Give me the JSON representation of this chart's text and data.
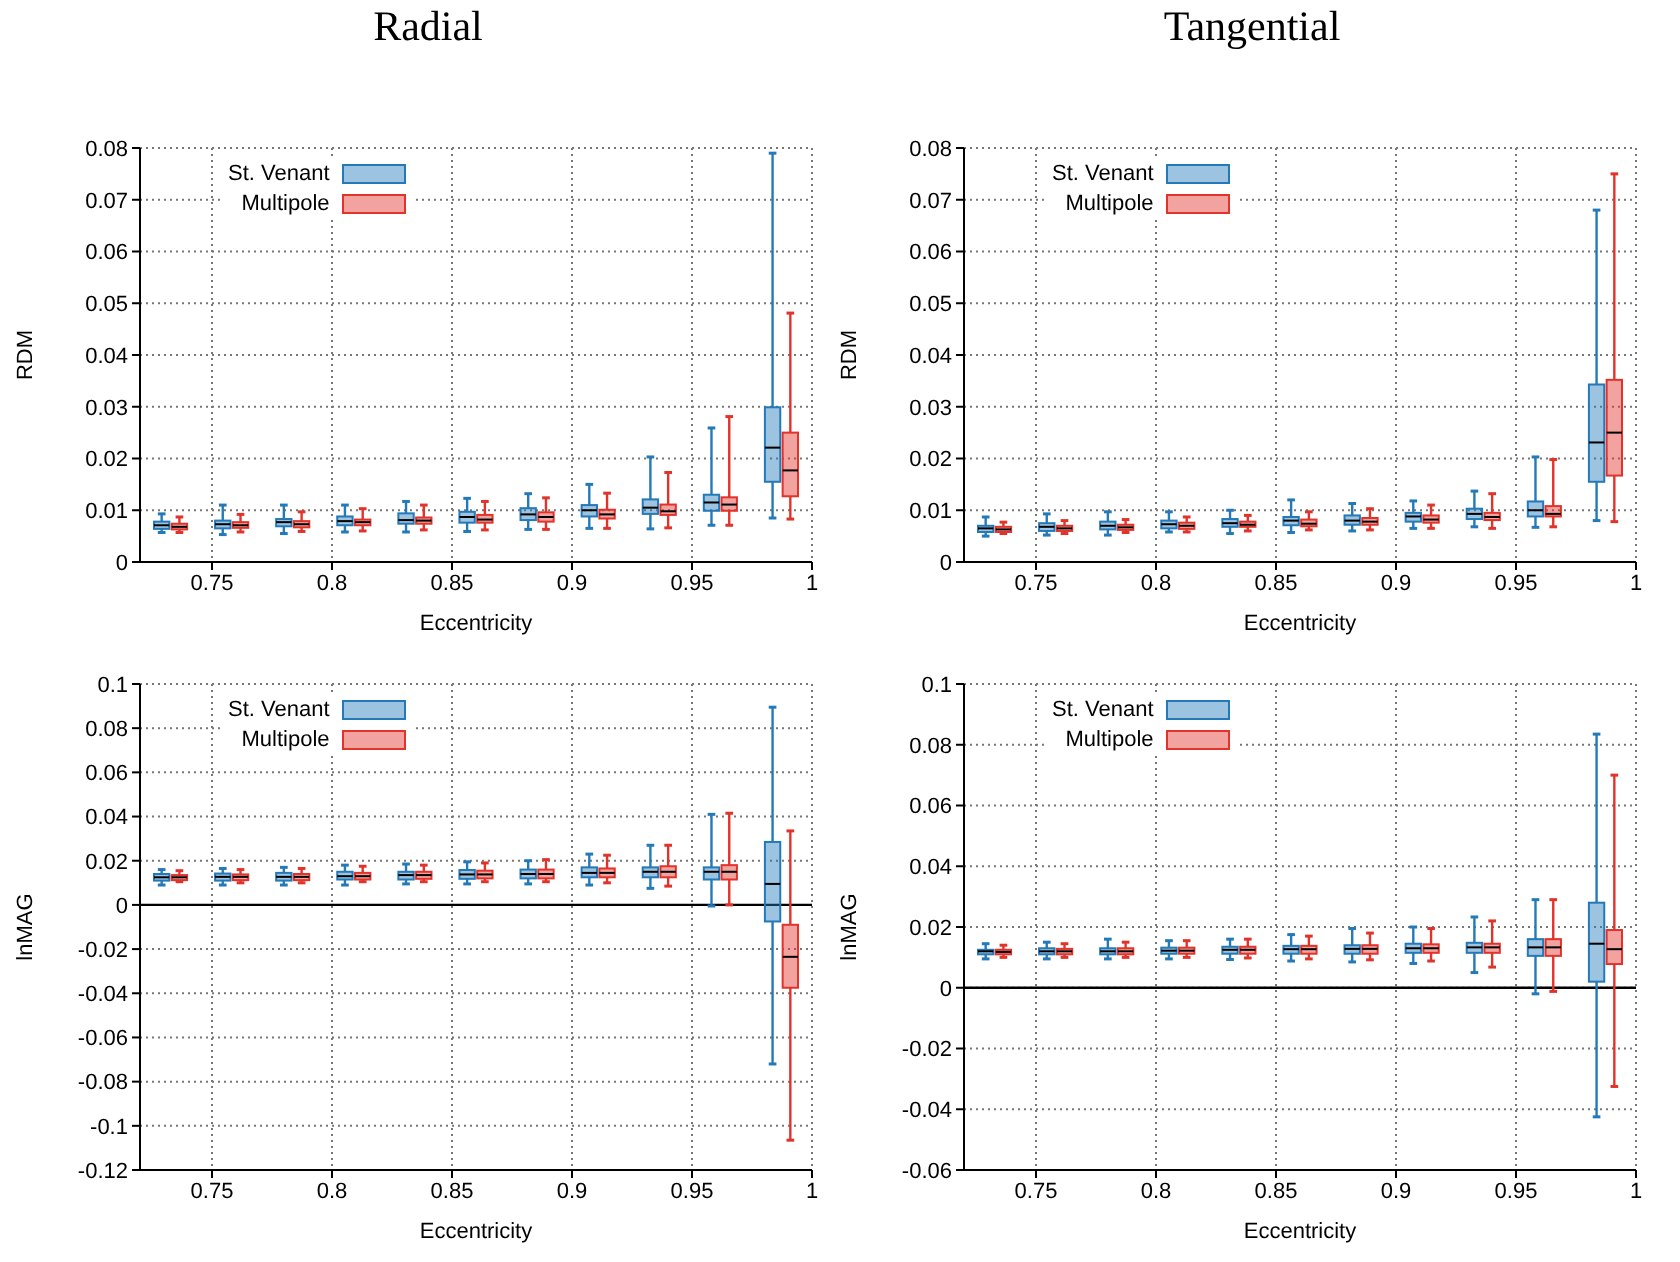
{
  "chart_data": [
    {
      "type": "box",
      "title": "Radial",
      "xlabel": "Eccentricity",
      "ylabel": "RDM",
      "categories": [
        null,
        null,
        null,
        null,
        null,
        null,
        null,
        null,
        null,
        null,
        null
      ],
      "x2lim": [
        0.72,
        1
      ],
      "x2ticks": [
        0.75,
        0.8,
        0.85,
        0.9,
        0.95,
        1
      ],
      "ylim": [
        0,
        0.08
      ],
      "yticks": [
        0,
        0.01,
        0.02,
        0.03,
        0.04,
        0.05,
        0.06,
        0.07,
        0.08
      ],
      "grid": true,
      "legend": "top left",
      "series": [
        {
          "name": "St. Venant",
          "color": "#2479b8",
          "boxes": [
            {
              "low": 0.0057,
              "q1": 0.0064,
              "median": 0.0071,
              "q3": 0.0078,
              "high": 0.0093
            },
            {
              "low": 0.0053,
              "q1": 0.0065,
              "median": 0.0073,
              "q3": 0.008,
              "high": 0.011
            },
            {
              "low": 0.0055,
              "q1": 0.0069,
              "median": 0.0077,
              "q3": 0.0083,
              "high": 0.011
            },
            {
              "low": 0.0058,
              "q1": 0.0071,
              "median": 0.0079,
              "q3": 0.0088,
              "high": 0.011
            },
            {
              "low": 0.0058,
              "q1": 0.0074,
              "median": 0.0081,
              "q3": 0.0094,
              "high": 0.0117
            },
            {
              "low": 0.0059,
              "q1": 0.0076,
              "median": 0.0087,
              "q3": 0.0097,
              "high": 0.0123
            },
            {
              "low": 0.0063,
              "q1": 0.0081,
              "median": 0.0092,
              "q3": 0.0104,
              "high": 0.0132
            },
            {
              "low": 0.0065,
              "q1": 0.0088,
              "median": 0.01,
              "q3": 0.011,
              "high": 0.015
            },
            {
              "low": 0.0064,
              "q1": 0.0093,
              "median": 0.0105,
              "q3": 0.0121,
              "high": 0.0203
            },
            {
              "low": 0.0071,
              "q1": 0.0099,
              "median": 0.0115,
              "q3": 0.013,
              "high": 0.0259
            },
            {
              "low": 0.0085,
              "q1": 0.0155,
              "median": 0.0221,
              "q3": 0.0299,
              "high": 0.079
            }
          ]
        },
        {
          "name": "Multipole",
          "color": "#e2332b",
          "boxes": [
            {
              "low": 0.0057,
              "q1": 0.0063,
              "median": 0.0068,
              "q3": 0.0074,
              "high": 0.0087
            },
            {
              "low": 0.0058,
              "q1": 0.0066,
              "median": 0.0071,
              "q3": 0.0077,
              "high": 0.0092
            },
            {
              "low": 0.0059,
              "q1": 0.0067,
              "median": 0.0073,
              "q3": 0.0079,
              "high": 0.0097
            },
            {
              "low": 0.006,
              "q1": 0.0071,
              "median": 0.0077,
              "q3": 0.0082,
              "high": 0.0103
            },
            {
              "low": 0.0062,
              "q1": 0.0074,
              "median": 0.008,
              "q3": 0.0086,
              "high": 0.011
            },
            {
              "low": 0.0062,
              "q1": 0.0076,
              "median": 0.0082,
              "q3": 0.0091,
              "high": 0.0117
            },
            {
              "low": 0.0063,
              "q1": 0.0078,
              "median": 0.0087,
              "q3": 0.0096,
              "high": 0.0124
            },
            {
              "low": 0.0065,
              "q1": 0.0084,
              "median": 0.0092,
              "q3": 0.0101,
              "high": 0.0133
            },
            {
              "low": 0.0066,
              "q1": 0.0091,
              "median": 0.0098,
              "q3": 0.0111,
              "high": 0.0173
            },
            {
              "low": 0.0071,
              "q1": 0.0099,
              "median": 0.0111,
              "q3": 0.0125,
              "high": 0.0281
            },
            {
              "low": 0.0083,
              "q1": 0.0127,
              "median": 0.0177,
              "q3": 0.025,
              "high": 0.0481
            }
          ]
        }
      ]
    },
    {
      "type": "box",
      "title": "Tangential",
      "xlabel": "Eccentricity",
      "ylabel": "RDM",
      "categories": [
        null,
        null,
        null,
        null,
        null,
        null,
        null,
        null,
        null,
        null,
        null
      ],
      "x2lim": [
        0.72,
        1
      ],
      "x2ticks": [
        0.75,
        0.8,
        0.85,
        0.9,
        0.95,
        1
      ],
      "ylim": [
        0,
        0.08
      ],
      "yticks": [
        0,
        0.01,
        0.02,
        0.03,
        0.04,
        0.05,
        0.06,
        0.07,
        0.08
      ],
      "grid": true,
      "legend": "top left",
      "series": [
        {
          "name": "St. Venant",
          "color": "#2479b8",
          "boxes": [
            {
              "low": 0.005,
              "q1": 0.0058,
              "median": 0.0065,
              "q3": 0.007,
              "high": 0.0087
            },
            {
              "low": 0.0052,
              "q1": 0.006,
              "median": 0.0068,
              "q3": 0.0075,
              "high": 0.0093
            },
            {
              "low": 0.0052,
              "q1": 0.0063,
              "median": 0.007,
              "q3": 0.0078,
              "high": 0.0097
            },
            {
              "low": 0.0058,
              "q1": 0.0065,
              "median": 0.0073,
              "q3": 0.008,
              "high": 0.0097
            },
            {
              "low": 0.0055,
              "q1": 0.0068,
              "median": 0.0075,
              "q3": 0.0083,
              "high": 0.01
            },
            {
              "low": 0.0057,
              "q1": 0.0071,
              "median": 0.008,
              "q3": 0.0087,
              "high": 0.012
            },
            {
              "low": 0.006,
              "q1": 0.0072,
              "median": 0.008,
              "q3": 0.009,
              "high": 0.0113
            },
            {
              "low": 0.0065,
              "q1": 0.0078,
              "median": 0.0088,
              "q3": 0.0095,
              "high": 0.0118
            },
            {
              "low": 0.0068,
              "q1": 0.0083,
              "median": 0.0093,
              "q3": 0.0103,
              "high": 0.0137
            },
            {
              "low": 0.0067,
              "q1": 0.0088,
              "median": 0.01,
              "q3": 0.0117,
              "high": 0.0203
            },
            {
              "low": 0.008,
              "q1": 0.0155,
              "median": 0.0231,
              "q3": 0.0343,
              "high": 0.068
            }
          ]
        },
        {
          "name": "Multipole",
          "color": "#e2332b",
          "boxes": [
            {
              "low": 0.0055,
              "q1": 0.0058,
              "median": 0.0063,
              "q3": 0.0068,
              "high": 0.0077
            },
            {
              "low": 0.0055,
              "q1": 0.006,
              "median": 0.0065,
              "q3": 0.007,
              "high": 0.008
            },
            {
              "low": 0.0057,
              "q1": 0.0062,
              "median": 0.0067,
              "q3": 0.0072,
              "high": 0.0082
            },
            {
              "low": 0.0058,
              "q1": 0.0064,
              "median": 0.007,
              "q3": 0.0076,
              "high": 0.0087
            },
            {
              "low": 0.006,
              "q1": 0.0068,
              "median": 0.0072,
              "q3": 0.0078,
              "high": 0.009
            },
            {
              "low": 0.0062,
              "q1": 0.0069,
              "median": 0.0074,
              "q3": 0.0082,
              "high": 0.0097
            },
            {
              "low": 0.0062,
              "q1": 0.0072,
              "median": 0.0078,
              "q3": 0.0085,
              "high": 0.0103
            },
            {
              "low": 0.0065,
              "q1": 0.0076,
              "median": 0.0082,
              "q3": 0.009,
              "high": 0.011
            },
            {
              "low": 0.0065,
              "q1": 0.0081,
              "median": 0.0087,
              "q3": 0.0095,
              "high": 0.0132
            },
            {
              "low": 0.0068,
              "q1": 0.0088,
              "median": 0.0093,
              "q3": 0.0108,
              "high": 0.0198
            },
            {
              "low": 0.0078,
              "q1": 0.0167,
              "median": 0.025,
              "q3": 0.0352,
              "high": 0.075
            }
          ]
        }
      ]
    },
    {
      "type": "box",
      "xlabel": "Eccentricity",
      "ylabel": "lnMAG",
      "categories": [
        null,
        null,
        null,
        null,
        null,
        null,
        null,
        null,
        null,
        null,
        null
      ],
      "x2lim": [
        0.72,
        1
      ],
      "x2ticks": [
        0.75,
        0.8,
        0.85,
        0.9,
        0.95,
        1
      ],
      "ylim": [
        -0.12,
        0.1
      ],
      "yticks": [
        -0.12,
        -0.1,
        -0.08,
        -0.06,
        -0.04,
        -0.02,
        0,
        0.02,
        0.04,
        0.06,
        0.08,
        0.1
      ],
      "grid": true,
      "legend": "top left",
      "ref_lines": [
        {
          "axis": "y",
          "value": 0,
          "color": "#000000"
        }
      ],
      "series": [
        {
          "name": "St. Venant",
          "color": "#2479b8",
          "boxes": [
            {
              "low": 0.009,
              "q1": 0.011,
              "median": 0.0125,
              "q3": 0.014,
              "high": 0.016
            },
            {
              "low": 0.009,
              "q1": 0.011,
              "median": 0.0127,
              "q3": 0.0142,
              "high": 0.0165
            },
            {
              "low": 0.009,
              "q1": 0.011,
              "median": 0.0127,
              "q3": 0.0145,
              "high": 0.017
            },
            {
              "low": 0.009,
              "q1": 0.0115,
              "median": 0.013,
              "q3": 0.015,
              "high": 0.018
            },
            {
              "low": 0.0095,
              "q1": 0.0115,
              "median": 0.0135,
              "q3": 0.015,
              "high": 0.0185
            },
            {
              "low": 0.0095,
              "q1": 0.0118,
              "median": 0.0138,
              "q3": 0.0158,
              "high": 0.0195
            },
            {
              "low": 0.0095,
              "q1": 0.012,
              "median": 0.014,
              "q3": 0.016,
              "high": 0.02
            },
            {
              "low": 0.009,
              "q1": 0.0125,
              "median": 0.0145,
              "q3": 0.017,
              "high": 0.023
            },
            {
              "low": 0.0075,
              "q1": 0.0125,
              "median": 0.015,
              "q3": 0.017,
              "high": 0.027
            },
            {
              "low": -0.0005,
              "q1": 0.0115,
              "median": 0.015,
              "q3": 0.017,
              "high": 0.041
            },
            {
              "low": -0.072,
              "q1": -0.0075,
              "median": 0.0095,
              "q3": 0.0285,
              "high": 0.0895
            }
          ]
        },
        {
          "name": "Multipole",
          "color": "#e2332b",
          "boxes": [
            {
              "low": 0.0105,
              "q1": 0.0112,
              "median": 0.0125,
              "q3": 0.0135,
              "high": 0.0155
            },
            {
              "low": 0.01,
              "q1": 0.0112,
              "median": 0.0127,
              "q3": 0.0138,
              "high": 0.016
            },
            {
              "low": 0.01,
              "q1": 0.0112,
              "median": 0.0127,
              "q3": 0.014,
              "high": 0.0165
            },
            {
              "low": 0.0105,
              "q1": 0.0115,
              "median": 0.013,
              "q3": 0.0145,
              "high": 0.0175
            },
            {
              "low": 0.0105,
              "q1": 0.0118,
              "median": 0.0135,
              "q3": 0.015,
              "high": 0.018
            },
            {
              "low": 0.0105,
              "q1": 0.012,
              "median": 0.0138,
              "q3": 0.0155,
              "high": 0.019
            },
            {
              "low": 0.0105,
              "q1": 0.012,
              "median": 0.014,
              "q3": 0.016,
              "high": 0.0205
            },
            {
              "low": 0.01,
              "q1": 0.0125,
              "median": 0.0145,
              "q3": 0.0165,
              "high": 0.0225
            },
            {
              "low": 0.0085,
              "q1": 0.0125,
              "median": 0.015,
              "q3": 0.0175,
              "high": 0.027
            },
            {
              "low": 0,
              "q1": 0.0115,
              "median": 0.015,
              "q3": 0.018,
              "high": 0.0415
            },
            {
              "low": -0.1065,
              "q1": -0.0375,
              "median": -0.0235,
              "q3": -0.009,
              "high": 0.0335
            }
          ]
        }
      ]
    },
    {
      "type": "box",
      "xlabel": "Eccentricity",
      "ylabel": "lnMAG",
      "categories": [
        null,
        null,
        null,
        null,
        null,
        null,
        null,
        null,
        null,
        null,
        null
      ],
      "x2lim": [
        0.72,
        1
      ],
      "x2ticks": [
        0.75,
        0.8,
        0.85,
        0.9,
        0.95,
        1
      ],
      "ylim": [
        -0.06,
        0.1
      ],
      "yticks": [
        -0.06,
        -0.04,
        -0.02,
        0,
        0.02,
        0.04,
        0.06,
        0.08,
        0.1
      ],
      "grid": true,
      "legend": "top left",
      "ref_lines": [
        {
          "axis": "y",
          "value": 0,
          "color": "#000000"
        }
      ],
      "series": [
        {
          "name": "St. Venant",
          "color": "#2479b8",
          "boxes": [
            {
              "low": 0.0095,
              "q1": 0.011,
              "median": 0.012,
              "q3": 0.0125,
              "high": 0.0145
            },
            {
              "low": 0.0095,
              "q1": 0.011,
              "median": 0.012,
              "q3": 0.013,
              "high": 0.015
            },
            {
              "low": 0.0095,
              "q1": 0.011,
              "median": 0.012,
              "q3": 0.013,
              "high": 0.016
            },
            {
              "low": 0.0095,
              "q1": 0.0112,
              "median": 0.0122,
              "q3": 0.0132,
              "high": 0.0155
            },
            {
              "low": 0.0093,
              "q1": 0.0112,
              "median": 0.0125,
              "q3": 0.0135,
              "high": 0.016
            },
            {
              "low": 0.0088,
              "q1": 0.0112,
              "median": 0.0127,
              "q3": 0.0138,
              "high": 0.0175
            },
            {
              "low": 0.0085,
              "q1": 0.0112,
              "median": 0.0128,
              "q3": 0.014,
              "high": 0.0195
            },
            {
              "low": 0.008,
              "q1": 0.0115,
              "median": 0.013,
              "q3": 0.0145,
              "high": 0.02
            },
            {
              "low": 0.005,
              "q1": 0.0115,
              "median": 0.0133,
              "q3": 0.0148,
              "high": 0.0233
            },
            {
              "low": -0.002,
              "q1": 0.0105,
              "median": 0.0133,
              "q3": 0.016,
              "high": 0.029
            },
            {
              "low": -0.0425,
              "q1": 0.002,
              "median": 0.0145,
              "q3": 0.028,
              "high": 0.0835
            }
          ]
        },
        {
          "name": "Multipole",
          "color": "#e2332b",
          "boxes": [
            {
              "low": 0.01,
              "q1": 0.011,
              "median": 0.0118,
              "q3": 0.0125,
              "high": 0.014
            },
            {
              "low": 0.01,
              "q1": 0.011,
              "median": 0.012,
              "q3": 0.0128,
              "high": 0.0145
            },
            {
              "low": 0.01,
              "q1": 0.011,
              "median": 0.012,
              "q3": 0.013,
              "high": 0.015
            },
            {
              "low": 0.01,
              "q1": 0.0112,
              "median": 0.0122,
              "q3": 0.0132,
              "high": 0.0155
            },
            {
              "low": 0.0098,
              "q1": 0.0112,
              "median": 0.0125,
              "q3": 0.0135,
              "high": 0.016
            },
            {
              "low": 0.0095,
              "q1": 0.0112,
              "median": 0.0127,
              "q3": 0.0138,
              "high": 0.017
            },
            {
              "low": 0.0092,
              "q1": 0.0112,
              "median": 0.0128,
              "q3": 0.014,
              "high": 0.018
            },
            {
              "low": 0.0088,
              "q1": 0.0115,
              "median": 0.013,
              "q3": 0.0143,
              "high": 0.0195
            },
            {
              "low": 0.0068,
              "q1": 0.0115,
              "median": 0.0133,
              "q3": 0.0145,
              "high": 0.022
            },
            {
              "low": -0.0012,
              "q1": 0.0105,
              "median": 0.0133,
              "q3": 0.016,
              "high": 0.029
            },
            {
              "low": -0.0325,
              "q1": 0.0078,
              "median": 0.0127,
              "q3": 0.019,
              "high": 0.07
            }
          ]
        }
      ]
    }
  ]
}
